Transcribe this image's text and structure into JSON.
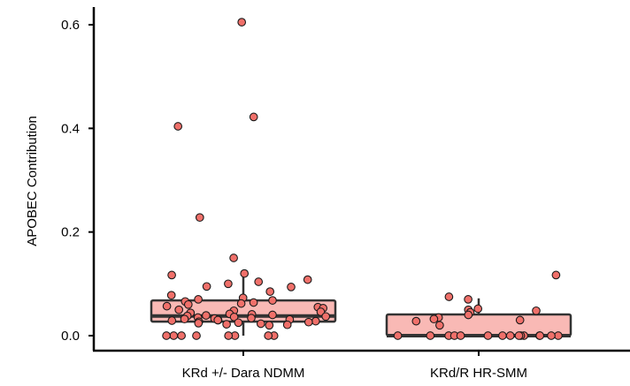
{
  "chart_data": {
    "type": "box",
    "ylabel": "APOBEC Contribution",
    "xlabel": "",
    "ylim": [
      -0.025,
      0.625
    ],
    "yticks": [
      "0.0",
      "0.2",
      "0.4",
      "0.6"
    ],
    "categories": [
      "KRd +/- Dara NDMM",
      "KRd/R HR-SMM"
    ],
    "grid": false,
    "colors": {
      "box_fill": "#f9b9b5",
      "box_stroke": "#333333",
      "point_fill": "#f0706a",
      "point_stroke": "#1a1a1a"
    },
    "groups": [
      {
        "name": "KRd +/- Dara NDMM",
        "box": {
          "q1": 0.027,
          "median": 0.038,
          "q3": 0.068,
          "whisker_low": 0.0,
          "whisker_high": 0.12
        },
        "points": [
          0.605,
          0.422,
          0.404,
          0.228,
          0.15,
          0.12,
          0.117,
          0.108,
          0.104,
          0.1,
          0.095,
          0.094,
          0.085,
          0.078,
          0.073,
          0.07,
          0.068,
          0.066,
          0.064,
          0.062,
          0.06,
          0.057,
          0.055,
          0.053,
          0.05,
          0.048,
          0.046,
          0.044,
          0.042,
          0.041,
          0.04,
          0.039,
          0.038,
          0.037,
          0.036,
          0.035,
          0.034,
          0.033,
          0.032,
          0.031,
          0.03,
          0.03,
          0.029,
          0.028,
          0.027,
          0.026,
          0.025,
          0.024,
          0.023,
          0.022,
          0.021,
          0.02,
          0.0,
          0.0,
          0.0,
          0.0,
          0.0,
          0.0,
          0.0,
          0.0
        ]
      },
      {
        "name": "KRd/R HR-SMM",
        "box": {
          "q1": 0.0,
          "median": 0.0,
          "q3": 0.041,
          "whisker_low": 0.0,
          "whisker_high": 0.072
        },
        "points": [
          0.117,
          0.075,
          0.07,
          0.052,
          0.05,
          0.048,
          0.045,
          0.04,
          0.035,
          0.032,
          0.03,
          0.028,
          0.02,
          0.0,
          0.0,
          0.0,
          0.0,
          0.0,
          0.0,
          0.0,
          0.0,
          0.0,
          0.0,
          0.0,
          0.0,
          0.0,
          0.0,
          0.0
        ]
      }
    ]
  }
}
